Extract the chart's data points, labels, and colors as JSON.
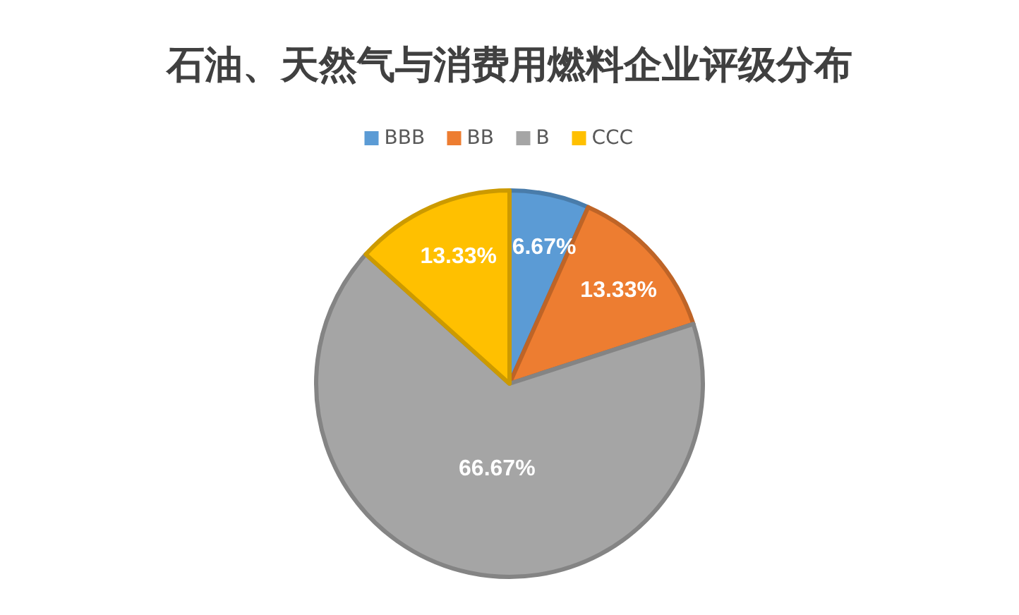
{
  "chart_data": {
    "type": "pie",
    "title": "石油、天然气与消费用燃料企业评级分布",
    "categories": [
      "BBB",
      "BB",
      "B",
      "CCC"
    ],
    "values": [
      6.67,
      13.33,
      66.67,
      13.33
    ],
    "colors": [
      "#5b9bd5",
      "#ed7d31",
      "#a5a5a5",
      "#ffc000"
    ],
    "value_labels": [
      "6.67%",
      "13.33%",
      "66.67%",
      "13.33%"
    ],
    "legend": "top"
  }
}
